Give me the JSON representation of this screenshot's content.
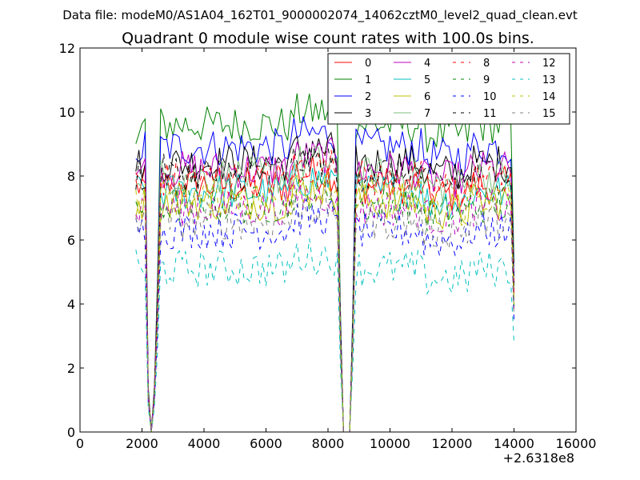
{
  "suptitle": "Data file: modeM0/AS1A04_162T01_9000002074_14062cztM0_level2_quad_clean.evt",
  "chart_data": {
    "type": "line",
    "title": "Quadrant 0 module wise count rates with 100.0s bins.",
    "xlabel": "",
    "ylabel": "",
    "xlim": [
      0,
      16000
    ],
    "ylim": [
      0,
      12
    ],
    "x_offset_label": "+2.6318e8",
    "xticks": [
      0,
      2000,
      4000,
      6000,
      8000,
      10000,
      12000,
      14000,
      16000
    ],
    "xtick_labels": [
      "0",
      "2000",
      "4000",
      "6000",
      "8000",
      "10000",
      "12000",
      "14000",
      "16000"
    ],
    "yticks": [
      0,
      2,
      4,
      6,
      8,
      10,
      12
    ],
    "ytick_labels": [
      "0",
      "2",
      "4",
      "6",
      "8",
      "10",
      "12"
    ],
    "bin_seconds": 100,
    "segments": [
      {
        "x_start": 1800,
        "x_end": 2400
      },
      {
        "x_start": 2400,
        "x_end": 8400
      },
      {
        "x_start": 8400,
        "x_end": 14000
      }
    ],
    "legend_position": "top-right",
    "series": [
      {
        "name": "0",
        "color": "#ff0000",
        "dash": "solid",
        "level": 7.7
      },
      {
        "name": "1",
        "color": "#008000",
        "dash": "solid",
        "level": 9.6
      },
      {
        "name": "2",
        "color": "#0000ff",
        "dash": "solid",
        "level": 8.9
      },
      {
        "name": "3",
        "color": "#000000",
        "dash": "solid",
        "level": 8.4
      },
      {
        "name": "4",
        "color": "#bf00bf",
        "dash": "solid",
        "level": 8.2
      },
      {
        "name": "5",
        "color": "#00bfbf",
        "dash": "solid",
        "level": 7.5
      },
      {
        "name": "6",
        "color": "#bfbf00",
        "dash": "solid",
        "level": 7.2
      },
      {
        "name": "7",
        "color": "#7fbf7f",
        "dash": "solid",
        "level": 8.0
      },
      {
        "name": "8",
        "color": "#ff0000",
        "dash": "dashed",
        "level": 7.9
      },
      {
        "name": "9",
        "color": "#008000",
        "dash": "dashed",
        "level": 7.1
      },
      {
        "name": "10",
        "color": "#0000ff",
        "dash": "dashed",
        "level": 6.3
      },
      {
        "name": "11",
        "color": "#000000",
        "dash": "dashed",
        "level": 8.1
      },
      {
        "name": "12",
        "color": "#bf00bf",
        "dash": "dashed",
        "level": 7.0
      },
      {
        "name": "13",
        "color": "#00bfbf",
        "dash": "dashed",
        "level": 5.1
      },
      {
        "name": "14",
        "color": "#bfbf00",
        "dash": "dashed",
        "level": 7.3
      },
      {
        "name": "15",
        "color": "#808080",
        "dash": "dashed",
        "level": 6.6
      }
    ]
  }
}
